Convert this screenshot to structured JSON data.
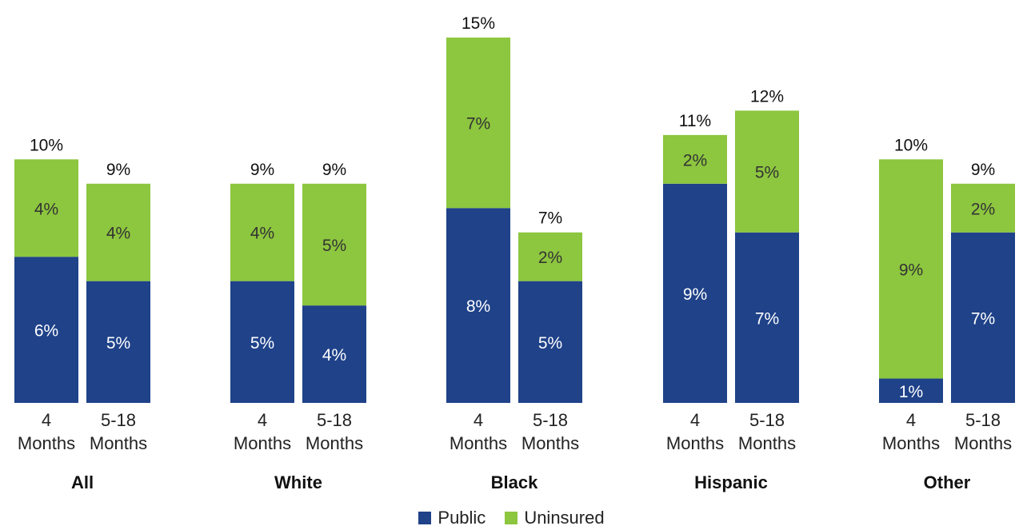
{
  "colors": {
    "public": "#1f4289",
    "uninsured": "#8dc63f"
  },
  "legend": {
    "public": "Public",
    "uninsured": "Uninsured"
  },
  "chart_data": {
    "type": "bar",
    "stacked": true,
    "groups": [
      {
        "name": "All",
        "bars": [
          {
            "label": [
              "4",
              "Months"
            ],
            "public": 6,
            "uninsured": 4,
            "total": 10,
            "public_label": "6%",
            "uninsured_label": "4%",
            "total_label": "10%"
          },
          {
            "label": [
              "5-18",
              "Months"
            ],
            "public": 5,
            "uninsured": 4,
            "total": 9,
            "public_label": "5%",
            "uninsured_label": "4%",
            "total_label": "9%"
          }
        ]
      },
      {
        "name": "White",
        "bars": [
          {
            "label": [
              "4",
              "Months"
            ],
            "public": 5,
            "uninsured": 4,
            "total": 9,
            "public_label": "5%",
            "uninsured_label": "4%",
            "total_label": "9%"
          },
          {
            "label": [
              "5-18",
              "Months"
            ],
            "public": 4,
            "uninsured": 5,
            "total": 9,
            "public_label": "4%",
            "uninsured_label": "5%",
            "total_label": "9%"
          }
        ]
      },
      {
        "name": "Black",
        "bars": [
          {
            "label": [
              "4",
              "Months"
            ],
            "public": 8,
            "uninsured": 7,
            "total": 15,
            "public_label": "8%",
            "uninsured_label": "7%",
            "total_label": "15%"
          },
          {
            "label": [
              "5-18",
              "Months"
            ],
            "public": 5,
            "uninsured": 2,
            "total": 7,
            "public_label": "5%",
            "uninsured_label": "2%",
            "total_label": "7%"
          }
        ]
      },
      {
        "name": "Hispanic",
        "bars": [
          {
            "label": [
              "4",
              "Months"
            ],
            "public": 9,
            "uninsured": 2,
            "total": 11,
            "public_label": "9%",
            "uninsured_label": "2%",
            "total_label": "11%"
          },
          {
            "label": [
              "5-18",
              "Months"
            ],
            "public": 7,
            "uninsured": 5,
            "total": 12,
            "public_label": "7%",
            "uninsured_label": "5%",
            "total_label": "12%"
          }
        ]
      },
      {
        "name": "Other",
        "bars": [
          {
            "label": [
              "4",
              "Months"
            ],
            "public": 1,
            "uninsured": 9,
            "total": 10,
            "public_label": "1%",
            "uninsured_label": "9%",
            "total_label": "10%"
          },
          {
            "label": [
              "5-18",
              "Months"
            ],
            "public": 7,
            "uninsured": 2,
            "total": 9,
            "public_label": "7%",
            "uninsured_label": "2%",
            "total_label": "9%"
          }
        ]
      }
    ],
    "series": [
      {
        "name": "Public"
      },
      {
        "name": "Uninsured"
      }
    ],
    "ylim": [
      0,
      15
    ],
    "grid": false,
    "legend_position": "bottom-center"
  }
}
